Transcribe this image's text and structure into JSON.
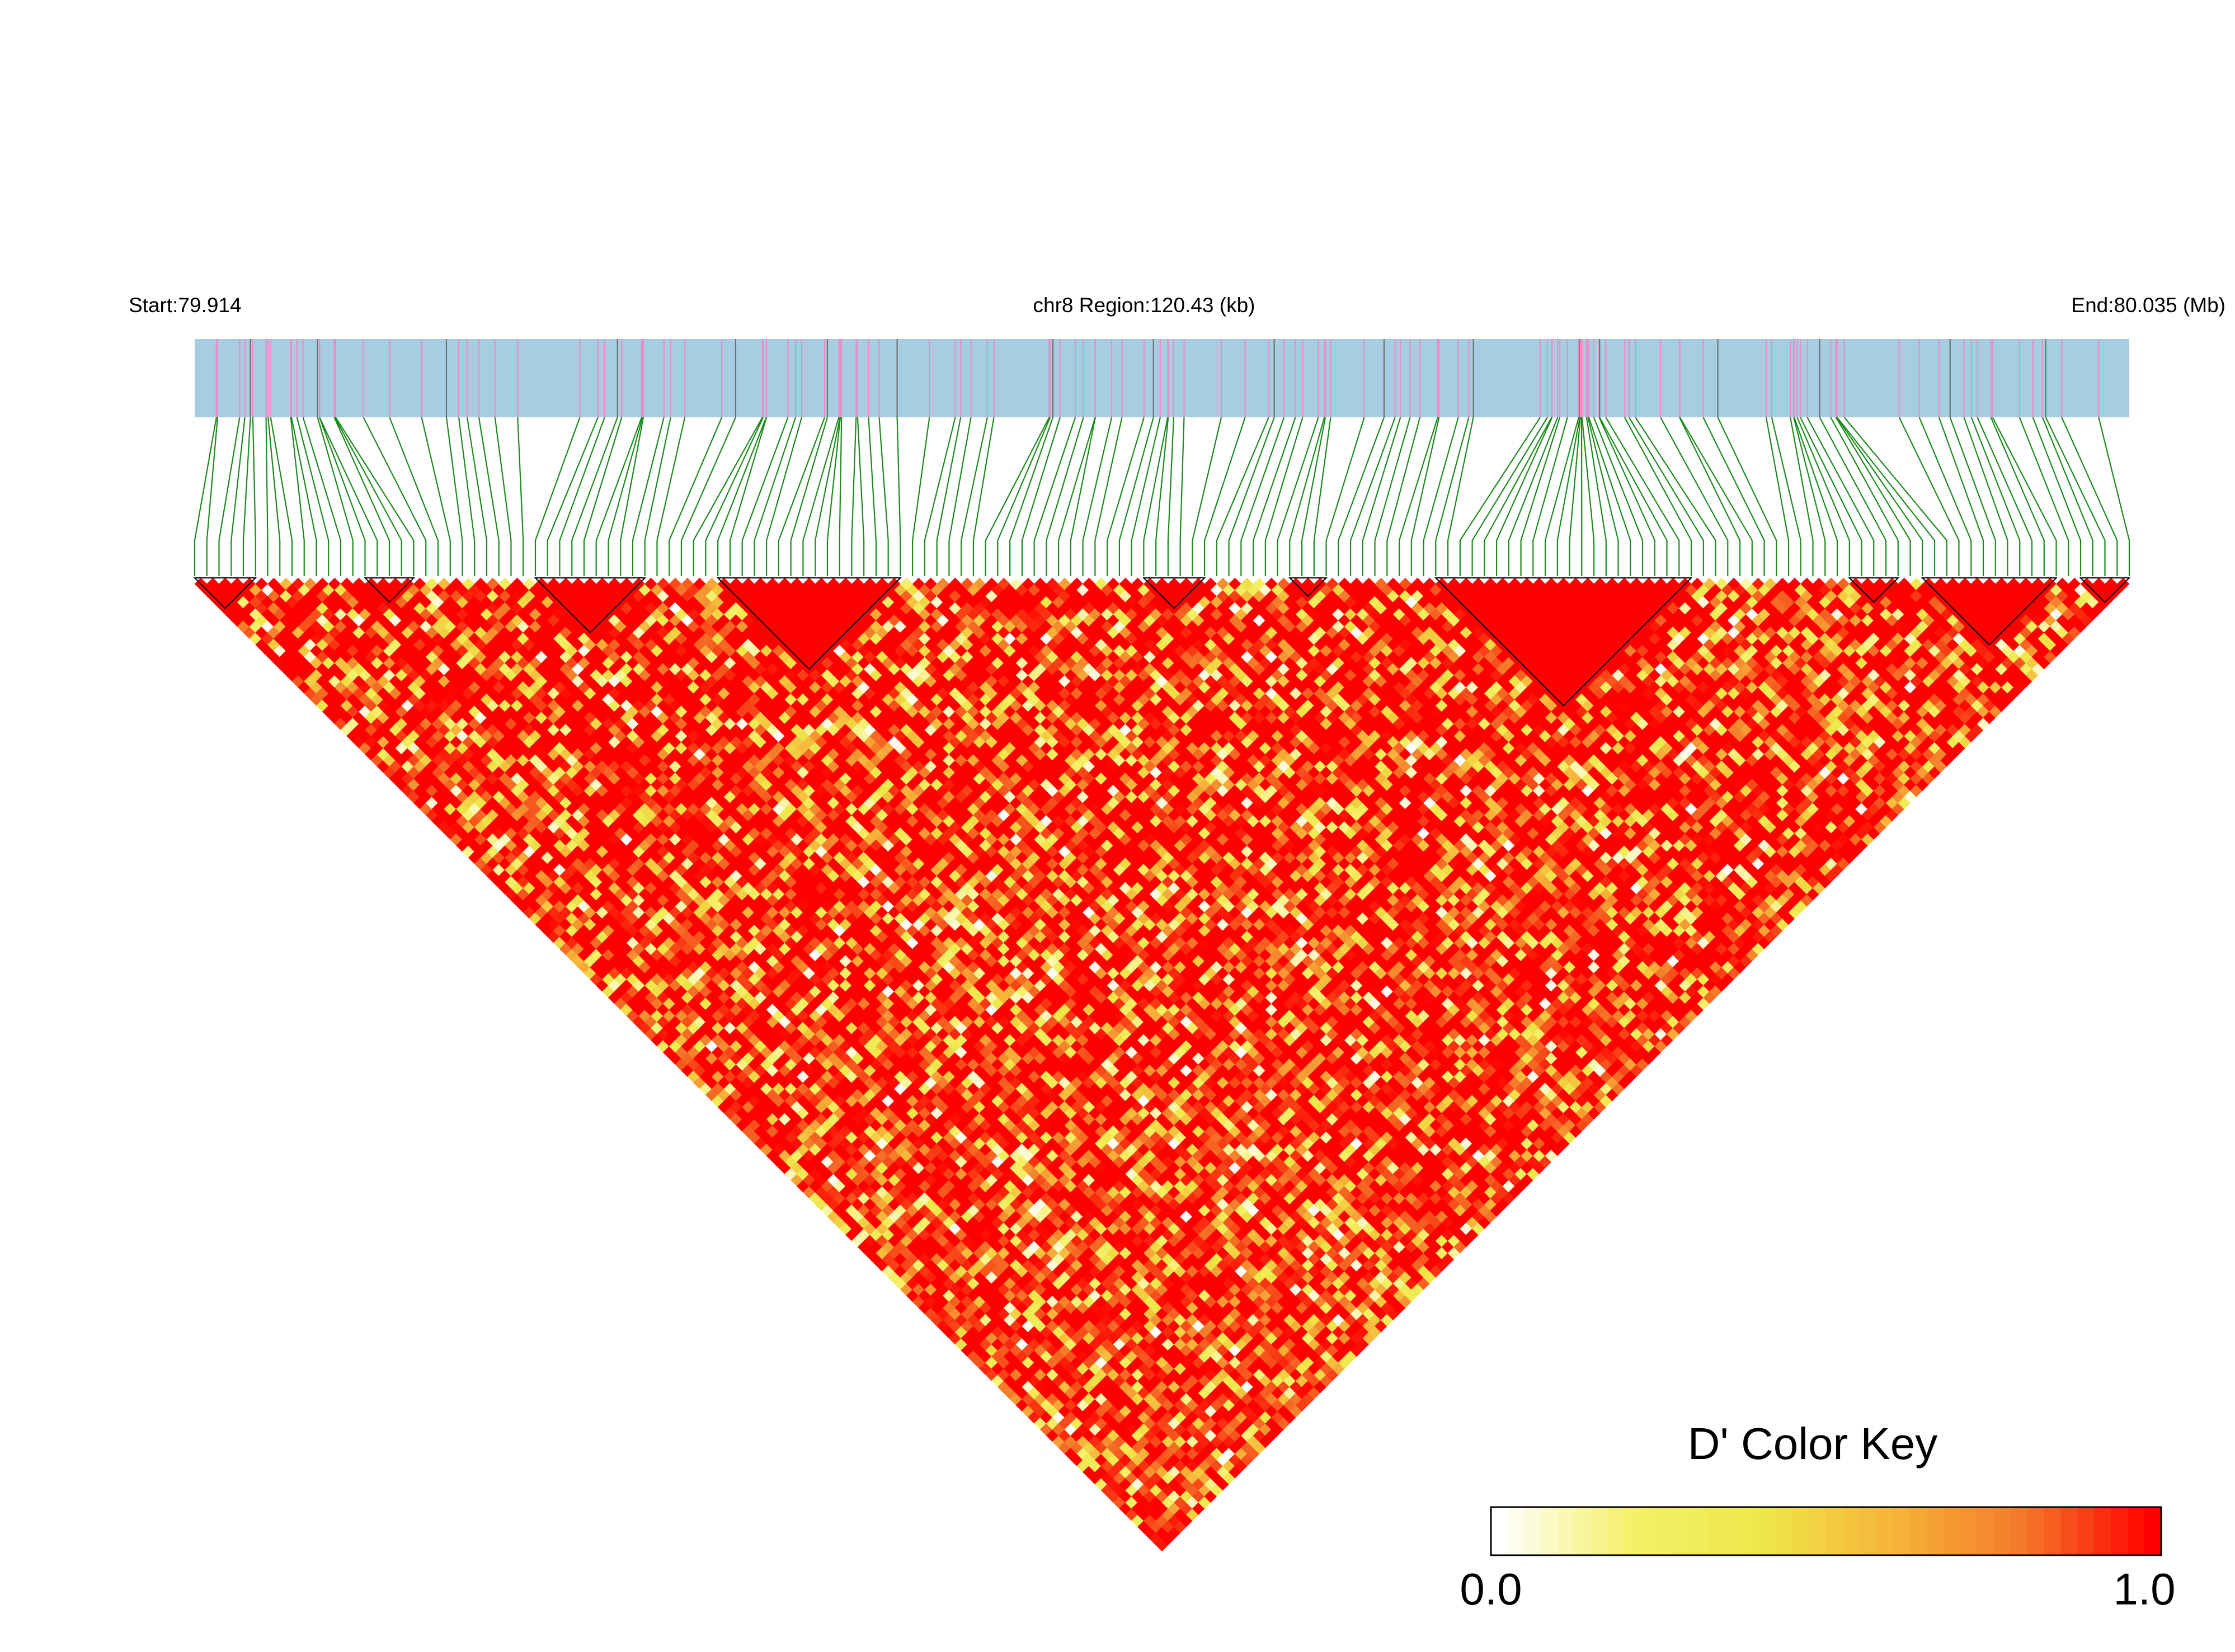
{
  "header": {
    "start_label": "Start:79.914",
    "region_label": "chr8 Region:120.43 (kb)",
    "end_label": "End:80.035 (Mb)"
  },
  "chart_data": {
    "type": "heatmap",
    "title": "",
    "chromosome": "chr8",
    "region_start_mb": 79.914,
    "region_end_mb": 80.035,
    "region_length_kb": 120.43,
    "n_snps": 160,
    "snp_positions_mb": [],
    "color_key": {
      "title": "D' Color Key",
      "min_label": "0.0",
      "max_label": "1.0",
      "min": 0.0,
      "max": 1.0,
      "colors": [
        "#ffffff",
        "#f5f06a",
        "#eee84a",
        "#f7b43a",
        "#f47a2a",
        "#ff0000"
      ]
    },
    "gene_track_color": "#a6cde2",
    "connector_color": "#1a8a1a",
    "snp_tick_colors": [
      "#e98fc8",
      "#707070"
    ],
    "ld_blocks_snp_ranges": [
      [
        0,
        5
      ],
      [
        14,
        18
      ],
      [
        28,
        37
      ],
      [
        43,
        58
      ],
      [
        78,
        83
      ],
      [
        90,
        93
      ],
      [
        102,
        123
      ],
      [
        136,
        140
      ],
      [
        142,
        153
      ],
      [
        155,
        159
      ]
    ]
  }
}
